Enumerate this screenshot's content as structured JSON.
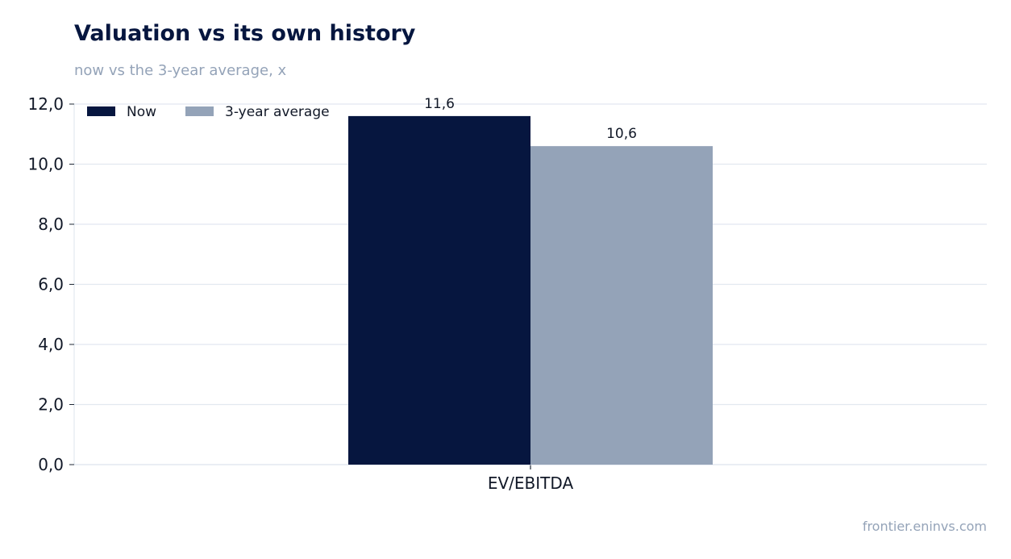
{
  "chart_data": {
    "type": "bar",
    "title": "Valuation vs its own history",
    "subtitle": "now vs the 3-year average, x",
    "categories": [
      "EV/EBITDA"
    ],
    "series": [
      {
        "name": "Now",
        "values": [
          11.6
        ],
        "labels": [
          "11,6"
        ],
        "color": "#06163f"
      },
      {
        "name": "3-year average",
        "values": [
          10.6
        ],
        "labels": [
          "10,6"
        ],
        "color": "#94a3b8"
      }
    ],
    "ylim": [
      0,
      12
    ],
    "yticks": [
      0,
      2,
      4,
      6,
      8,
      10,
      12
    ],
    "ytick_labels": [
      "0,0",
      "2,0",
      "4,0",
      "6,0",
      "8,0",
      "10,0",
      "12,0"
    ],
    "grid": true,
    "legend": "top-left",
    "xlabel": "",
    "ylabel": ""
  },
  "source": "frontier.eninvs.com"
}
